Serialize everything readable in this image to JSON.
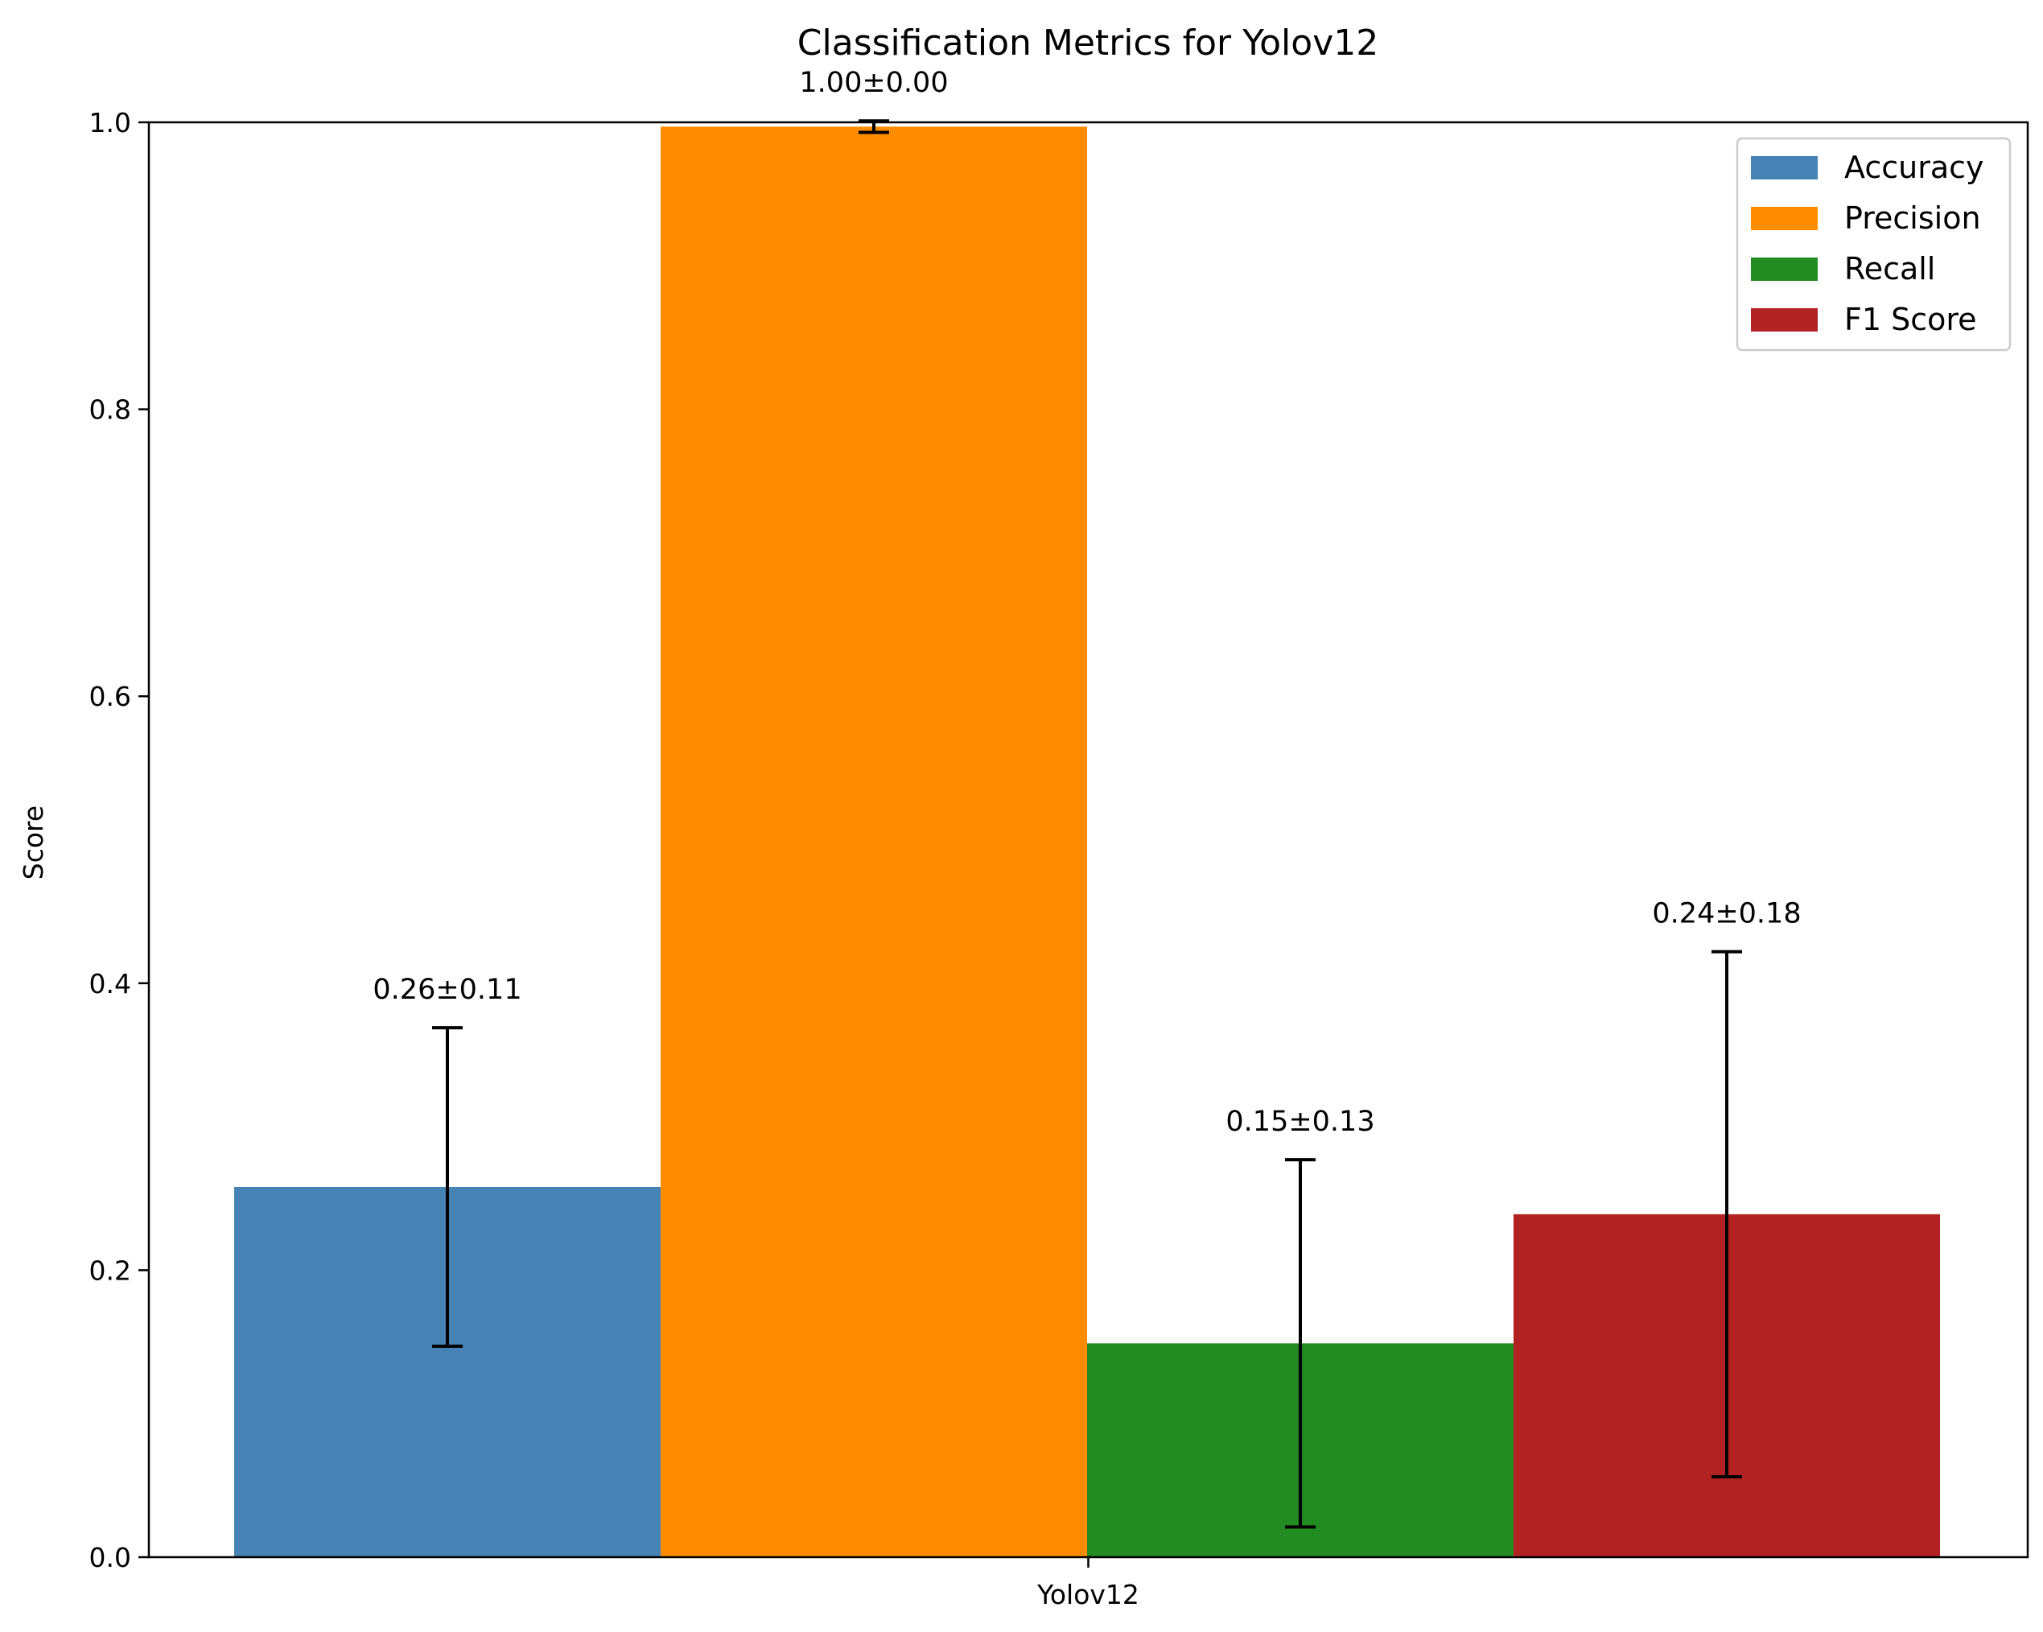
{
  "chart_data": {
    "type": "bar",
    "title": "Classification Metrics for Yolov12",
    "xlabel": "",
    "ylabel": "Score",
    "categories": [
      "Yolov12"
    ],
    "ylim": [
      0,
      1.0
    ],
    "yticks": [
      "0.0",
      "0.2",
      "0.4",
      "0.6",
      "0.8",
      "1.0"
    ],
    "grid": false,
    "legend_position": "top-right",
    "series": [
      {
        "name": "Accuracy",
        "values": [
          0.258
        ],
        "error": [
          0.111
        ],
        "label": "0.26±0.11",
        "color": "#4682b4"
      },
      {
        "name": "Precision",
        "values": [
          0.997
        ],
        "error": [
          0.004
        ],
        "label": "1.00±0.00",
        "color": "#ff8c00"
      },
      {
        "name": "Recall",
        "values": [
          0.149
        ],
        "error": [
          0.128
        ],
        "label": "0.15±0.13",
        "color": "#228b22"
      },
      {
        "name": "F1 Score",
        "values": [
          0.239
        ],
        "error": [
          0.183
        ],
        "label": "0.24±0.18",
        "color": "#b22222"
      }
    ]
  }
}
